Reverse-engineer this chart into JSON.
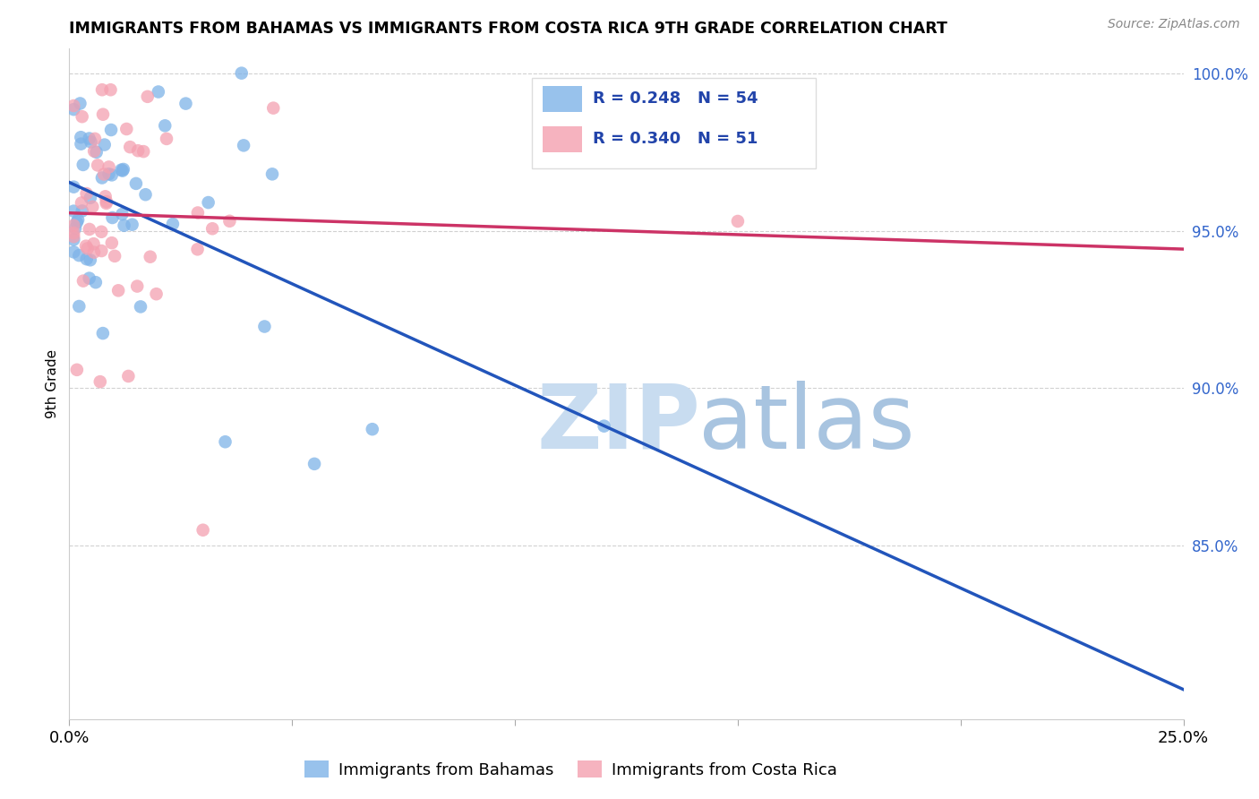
{
  "title": "IMMIGRANTS FROM BAHAMAS VS IMMIGRANTS FROM COSTA RICA 9TH GRADE CORRELATION CHART",
  "source": "Source: ZipAtlas.com",
  "ylabel": "9th Grade",
  "y_ticks": [
    0.85,
    0.9,
    0.95,
    1.0
  ],
  "y_tick_labels": [
    "85.0%",
    "90.0%",
    "95.0%",
    "100.0%"
  ],
  "x_ticks": [
    0.0,
    0.05,
    0.1,
    0.15,
    0.2,
    0.25
  ],
  "x_tick_labels": [
    "0.0%",
    "",
    "",
    "",
    "",
    "25.0%"
  ],
  "x_range": [
    0.0,
    0.25
  ],
  "y_range": [
    0.795,
    1.008
  ],
  "bahamas_R": 0.248,
  "bahamas_N": 54,
  "costarica_R": 0.34,
  "costarica_N": 51,
  "bahamas_color": "#7EB3E8",
  "costarica_color": "#F4A0B0",
  "bahamas_line_color": "#2255BB",
  "costarica_line_color": "#CC3366",
  "legend_label_bahamas": "Immigrants from Bahamas",
  "legend_label_costarica": "Immigrants from Costa Rica",
  "legend_R_color": "#2244AA",
  "watermark_zip_color": "#C8DCF0",
  "watermark_atlas_color": "#A8C4E0",
  "bahamas_seed": 42,
  "costarica_seed": 7
}
